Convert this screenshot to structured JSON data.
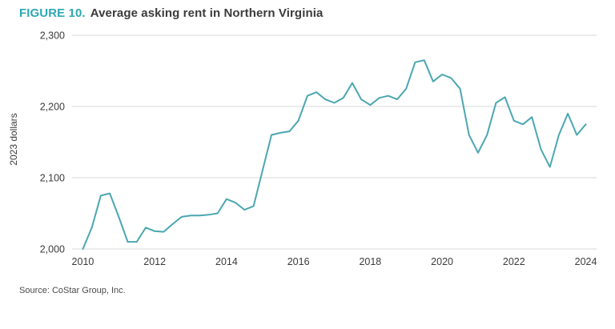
{
  "figure": {
    "label": "FIGURE 10.",
    "title": "Average asking rent in Northern Virginia",
    "source": "Source: CoStar Group, Inc."
  },
  "colors": {
    "accent": "#2ea8b3",
    "line": "#4ba7b1",
    "grid": "#d8d8d8",
    "text": "#3b3b3b"
  },
  "chart_data": {
    "type": "line",
    "title": "Average asking rent in Northern Virginia",
    "figure_label": "FIGURE 10.",
    "xlabel": "",
    "ylabel": "2023 dollars",
    "source": "Source: CoStar Group, Inc.",
    "legend": null,
    "grid": "horizontal",
    "xlim": [
      2009.7,
      2024.3
    ],
    "ylim": [
      2000,
      2300
    ],
    "yticks": [
      {
        "value": 2000,
        "label": "2,000"
      },
      {
        "value": 2100,
        "label": "2,100"
      },
      {
        "value": 2200,
        "label": "2,200"
      },
      {
        "value": 2300,
        "label": "2,300"
      }
    ],
    "xticks": [
      {
        "value": 2010,
        "label": "2010"
      },
      {
        "value": 2012,
        "label": "2012"
      },
      {
        "value": 2014,
        "label": "2014"
      },
      {
        "value": 2016,
        "label": "2016"
      },
      {
        "value": 2018,
        "label": "2018"
      },
      {
        "value": 2020,
        "label": "2020"
      },
      {
        "value": 2022,
        "label": "2022"
      },
      {
        "value": 2024,
        "label": "2024"
      }
    ],
    "series_name": "Average asking rent (2023 dollars)",
    "x_start": 2010.0,
    "x_step": 0.25,
    "values": [
      2000,
      2030,
      2075,
      2078,
      2045,
      2010,
      2010,
      2030,
      2025,
      2024,
      2035,
      2045,
      2047,
      2047,
      2048,
      2050,
      2070,
      2065,
      2055,
      2060,
      2110,
      2160,
      2163,
      2165,
      2180,
      2215,
      2220,
      2210,
      2205,
      2212,
      2233,
      2210,
      2202,
      2212,
      2215,
      2210,
      2225,
      2262,
      2265,
      2235,
      2245,
      2240,
      2225,
      2160,
      2135,
      2160,
      2205,
      2213,
      2180,
      2175,
      2185,
      2140,
      2115,
      2160,
      2190,
      2160,
      2175
    ]
  }
}
